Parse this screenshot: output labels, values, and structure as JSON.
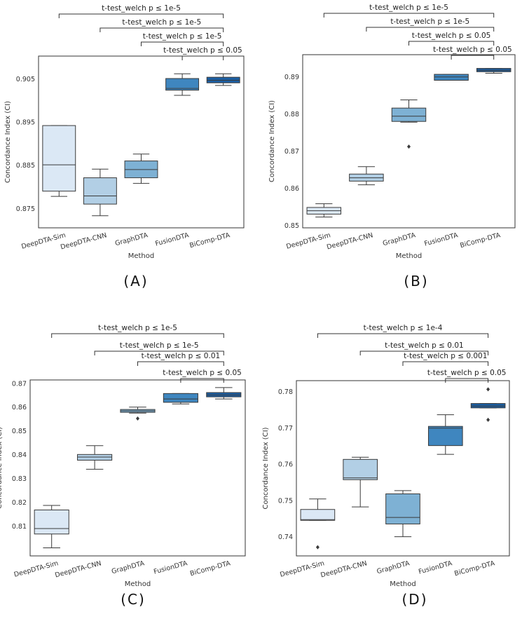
{
  "chart_data": [
    {
      "panel": "(A)",
      "type": "boxplot",
      "xlabel": "Method",
      "ylabel": "Concordance Index (CI)",
      "ylim": [
        0.8705,
        0.9103
      ],
      "yticks": [
        0.875,
        0.885,
        0.895,
        0.905
      ],
      "ytick_labels": [
        "0.875",
        "0.885",
        "0.895",
        "0.905"
      ],
      "categories": [
        "DeepDTA-Sim",
        "DeepDTA-CNN",
        "GraphDTA",
        "FusionDTA",
        "BiComp-DTA"
      ],
      "colors": [
        "#dbe8f5",
        "#b2cfe5",
        "#7eb1d4",
        "#3f86bf",
        "#1c5fa3"
      ],
      "boxes": [
        {
          "whislo": 0.8778,
          "q1": 0.879,
          "med": 0.8851,
          "q3": 0.8942,
          "whishi": 0.8942,
          "fliers": []
        },
        {
          "whislo": 0.8733,
          "q1": 0.876,
          "med": 0.8779,
          "q3": 0.8821,
          "whishi": 0.8841,
          "fliers": []
        },
        {
          "whislo": 0.8808,
          "q1": 0.8821,
          "med": 0.884,
          "q3": 0.886,
          "whishi": 0.8876,
          "fliers": []
        },
        {
          "whislo": 0.9012,
          "q1": 0.9024,
          "med": 0.9028,
          "q3": 0.9051,
          "whishi": 0.9062,
          "fliers": []
        },
        {
          "whislo": 0.9035,
          "q1": 0.9041,
          "med": 0.9047,
          "q3": 0.9054,
          "whishi": 0.9062,
          "fliers": []
        }
      ],
      "annotations": [
        {
          "text": "t-test_welch p ≤ 1e-5",
          "from": 0,
          "to": 4
        },
        {
          "text": "t-test_welch p ≤ 1e-5",
          "from": 1,
          "to": 4
        },
        {
          "text": "t-test_welch p ≤ 1e-5",
          "from": 2,
          "to": 4
        },
        {
          "text": "t-test_welch p ≤ 0.05",
          "from": 3,
          "to": 4
        }
      ]
    },
    {
      "panel": "(B)",
      "type": "boxplot",
      "xlabel": "Method",
      "ylabel": "Concordance Index (CI)",
      "ylim": [
        0.8493,
        0.896
      ],
      "yticks": [
        0.85,
        0.86,
        0.87,
        0.88,
        0.89
      ],
      "ytick_labels": [
        "0.85",
        "0.86",
        "0.87",
        "0.88",
        "0.89"
      ],
      "categories": [
        "DeepDTA-Sim",
        "DeepDTA-CNN",
        "GraphDTA",
        "FusionDTA",
        "BiComp-DTA"
      ],
      "colors": [
        "#dbe8f5",
        "#b2cfe5",
        "#7eb1d4",
        "#3f86bf",
        "#1c5fa3"
      ],
      "boxes": [
        {
          "whislo": 0.8522,
          "q1": 0.853,
          "med": 0.8539,
          "q3": 0.8548,
          "whishi": 0.8558,
          "fliers": []
        },
        {
          "whislo": 0.8609,
          "q1": 0.8619,
          "med": 0.8628,
          "q3": 0.8638,
          "whishi": 0.8658,
          "fliers": []
        },
        {
          "whislo": 0.8778,
          "q1": 0.878,
          "med": 0.8794,
          "q3": 0.8816,
          "whishi": 0.8838,
          "fliers": [
            0.8712
          ]
        },
        {
          "whislo": 0.8891,
          "q1": 0.8891,
          "med": 0.89,
          "q3": 0.8907,
          "whishi": 0.8907,
          "fliers": []
        },
        {
          "whislo": 0.891,
          "q1": 0.8914,
          "med": 0.8918,
          "q3": 0.8923,
          "whishi": 0.8923,
          "fliers": []
        }
      ],
      "annotations": [
        {
          "text": "t-test_welch p ≤ 1e-5",
          "from": 0,
          "to": 4
        },
        {
          "text": "t-test_welch p ≤ 1e-5",
          "from": 1,
          "to": 4
        },
        {
          "text": "t-test_welch p ≤ 0.05",
          "from": 2,
          "to": 4
        },
        {
          "text": "t-test_welch p ≤ 0.05",
          "from": 3,
          "to": 4
        }
      ]
    },
    {
      "panel": "(C)",
      "type": "boxplot",
      "xlabel": "Method",
      "ylabel": "Concordance Index (CI)",
      "ylim": [
        0.7975,
        0.8714
      ],
      "yticks": [
        0.81,
        0.82,
        0.83,
        0.84,
        0.85,
        0.86,
        0.87
      ],
      "ytick_labels": [
        "0.81",
        "0.82",
        "0.83",
        "0.84",
        "0.85",
        "0.86",
        "0.87"
      ],
      "categories": [
        "DeepDTA-Sim",
        "DeepDTA-CNN",
        "GraphDTA",
        "FusionDTA",
        "BiComp-DTA"
      ],
      "colors": [
        "#dbe8f5",
        "#b2cfe5",
        "#7eb1d4",
        "#3f86bf",
        "#1c5fa3"
      ],
      "boxes": [
        {
          "whislo": 0.8009,
          "q1": 0.8067,
          "med": 0.809,
          "q3": 0.8168,
          "whishi": 0.8187,
          "fliers": []
        },
        {
          "whislo": 0.8339,
          "q1": 0.8377,
          "med": 0.839,
          "q3": 0.8401,
          "whishi": 0.8438,
          "fliers": []
        },
        {
          "whislo": 0.8575,
          "q1": 0.8578,
          "med": 0.8584,
          "q3": 0.859,
          "whishi": 0.86,
          "fliers": [
            0.8552
          ]
        },
        {
          "whislo": 0.8613,
          "q1": 0.862,
          "med": 0.8634,
          "q3": 0.8657,
          "whishi": 0.8657,
          "fliers": []
        },
        {
          "whislo": 0.8634,
          "q1": 0.8643,
          "med": 0.8651,
          "q3": 0.8661,
          "whishi": 0.8682,
          "fliers": []
        }
      ],
      "annotations": [
        {
          "text": "t-test_welch p ≤ 1e-5",
          "from": 0,
          "to": 4
        },
        {
          "text": "t-test_welch p ≤ 1e-5",
          "from": 1,
          "to": 4
        },
        {
          "text": "t-test_welch p ≤ 0.01",
          "from": 2,
          "to": 4
        },
        {
          "text": "t-test_welch p ≤ 0.05",
          "from": 3,
          "to": 4
        }
      ]
    },
    {
      "panel": "(D)",
      "type": "boxplot",
      "xlabel": "Method",
      "ylabel": "Concordance Index (CI)",
      "ylim": [
        0.7347,
        0.783
      ],
      "yticks": [
        0.74,
        0.75,
        0.76,
        0.77,
        0.78
      ],
      "ytick_labels": [
        "0.74",
        "0.75",
        "0.76",
        "0.77",
        "0.78"
      ],
      "categories": [
        "DeepDTA-Sim",
        "DeepDTA-CNN",
        "GraphDTA",
        "FusionDTA",
        "BiComp-DTA"
      ],
      "colors": [
        "#dbe8f5",
        "#b2cfe5",
        "#7eb1d4",
        "#3f86bf",
        "#1c5fa3"
      ],
      "boxes": [
        {
          "whislo": 0.7445,
          "q1": 0.7445,
          "med": 0.7447,
          "q3": 0.7475,
          "whishi": 0.7504,
          "fliers": [
            0.7371
          ]
        },
        {
          "whislo": 0.7482,
          "q1": 0.7557,
          "med": 0.7562,
          "q3": 0.7613,
          "whishi": 0.7619,
          "fliers": []
        },
        {
          "whislo": 0.74,
          "q1": 0.7435,
          "med": 0.7453,
          "q3": 0.7518,
          "whishi": 0.7527,
          "fliers": []
        },
        {
          "whislo": 0.7627,
          "q1": 0.7651,
          "med": 0.7699,
          "q3": 0.7704,
          "whishi": 0.7736,
          "fliers": []
        },
        {
          "whislo": 0.7755,
          "q1": 0.7755,
          "med": 0.776,
          "q3": 0.7767,
          "whishi": 0.7767,
          "fliers": [
            0.7806,
            0.7722
          ]
        }
      ],
      "annotations": [
        {
          "text": "t-test_welch p ≤ 1e-4",
          "from": 0,
          "to": 4
        },
        {
          "text": "t-test_welch p ≤ 0.01",
          "from": 1,
          "to": 4
        },
        {
          "text": "t-test_welch p ≤ 0.001",
          "from": 2,
          "to": 4
        },
        {
          "text": "t-test_welch p ≤ 0.05",
          "from": 3,
          "to": 4
        }
      ]
    }
  ]
}
